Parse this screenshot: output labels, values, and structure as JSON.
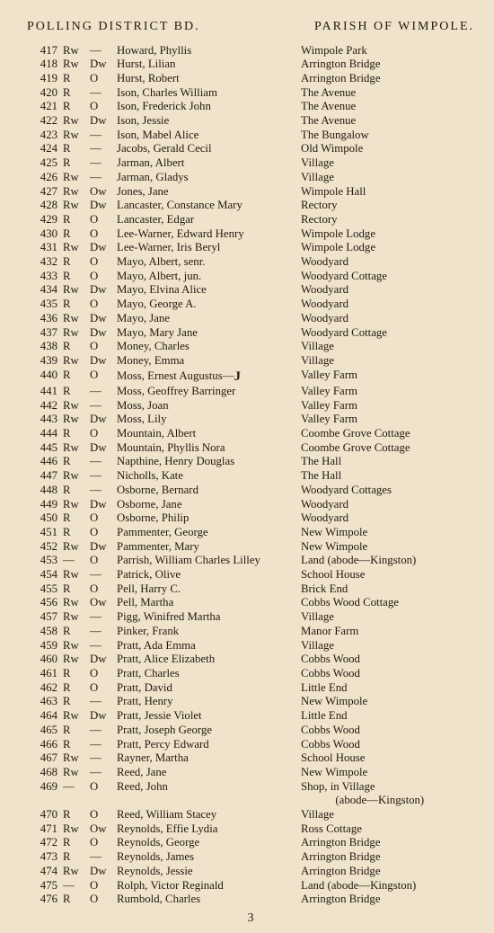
{
  "header": {
    "left": "POLLING DISTRICT BD.",
    "right": "PARISH OF WIMPOLE."
  },
  "page_number": "3",
  "entries": [
    {
      "n": "417",
      "a": "Rw",
      "b": "—",
      "name": "Howard, Phyllis",
      "addr": "Wimpole Park"
    },
    {
      "n": "418",
      "a": "Rw",
      "b": "Dw",
      "name": "Hurst, Lilian",
      "addr": "Arrington Bridge"
    },
    {
      "n": "419",
      "a": "R",
      "b": "O",
      "name": "Hurst, Robert",
      "addr": "Arrington Bridge"
    },
    {
      "n": "420",
      "a": "R",
      "b": "—",
      "name": "Ison, Charles William",
      "addr": "The Avenue"
    },
    {
      "n": "421",
      "a": "R",
      "b": "O",
      "name": "Ison, Frederick John",
      "addr": "The Avenue"
    },
    {
      "n": "422",
      "a": "Rw",
      "b": "Dw",
      "name": "Ison, Jessie",
      "addr": "The Avenue"
    },
    {
      "n": "423",
      "a": "Rw",
      "b": "—",
      "name": "Ison, Mabel Alice",
      "addr": "The Bungalow"
    },
    {
      "n": "424",
      "a": "R",
      "b": "—",
      "name": "Jacobs, Gerald Cecil",
      "addr": "Old Wimpole"
    },
    {
      "n": "425",
      "a": "R",
      "b": "—",
      "name": "Jarman, Albert",
      "addr": "Village"
    },
    {
      "n": "426",
      "a": "Rw",
      "b": "—",
      "name": "Jarman, Gladys",
      "addr": "Village"
    },
    {
      "n": "427",
      "a": "Rw",
      "b": "Ow",
      "name": "Jones, Jane",
      "addr": "Wimpole Hall"
    },
    {
      "n": "428",
      "a": "Rw",
      "b": "Dw",
      "name": "Lancaster, Constance Mary",
      "addr": "Rectory"
    },
    {
      "n": "429",
      "a": "R",
      "b": "O",
      "name": "Lancaster, Edgar",
      "addr": "Rectory"
    },
    {
      "n": "430",
      "a": "R",
      "b": "O",
      "name": "Lee-Warner, Edward Henry",
      "addr": "Wimpole Lodge"
    },
    {
      "n": "431",
      "a": "Rw",
      "b": "Dw",
      "name": "Lee-Warner, Iris Beryl",
      "addr": "Wimpole Lodge"
    },
    {
      "n": "432",
      "a": "R",
      "b": "O",
      "name": "Mayo, Albert, senr.",
      "addr": "Woodyard"
    },
    {
      "n": "433",
      "a": "R",
      "b": "O",
      "name": "Mayo, Albert, jun.",
      "addr": "Woodyard Cottage"
    },
    {
      "n": "434",
      "a": "Rw",
      "b": "Dw",
      "name": "Mayo, Elvina Alice",
      "addr": "Woodyard"
    },
    {
      "n": "435",
      "a": "R",
      "b": "O",
      "name": "Mayo, George A.",
      "addr": "Woodyard"
    },
    {
      "n": "436",
      "a": "Rw",
      "b": "Dw",
      "name": "Mayo, Jane",
      "addr": "Woodyard"
    },
    {
      "n": "437",
      "a": "Rw",
      "b": "Dw",
      "name": "Mayo, Mary Jane",
      "addr": "Woodyard Cottage"
    },
    {
      "n": "438",
      "a": "R",
      "b": "O",
      "name": "Money, Charles",
      "addr": "Village"
    },
    {
      "n": "439",
      "a": "Rw",
      "b": "Dw",
      "name": "Money, Emma",
      "addr": "Village"
    },
    {
      "n": "440",
      "a": "R",
      "b": "O",
      "name_html": "Moss, Ernest Augustus—<span class=\"bold-j\">J</span>",
      "addr": "Valley Farm"
    },
    {
      "n": "441",
      "a": "R",
      "b": "—",
      "name": "Moss, Geoffrey Barringer",
      "addr": "Valley Farm"
    },
    {
      "n": "442",
      "a": "Rw",
      "b": "—",
      "name": "Moss, Joan",
      "addr": "Valley Farm"
    },
    {
      "n": "443",
      "a": "Rw",
      "b": "Dw",
      "name": "Moss, Lily",
      "addr": "Valley Farm"
    },
    {
      "n": "444",
      "a": "R",
      "b": "O",
      "name": "Mountain, Albert",
      "addr": "Coombe Grove Cottage"
    },
    {
      "n": "445",
      "a": "Rw",
      "b": "Dw",
      "name": "Mountain, Phyllis Nora",
      "addr": "Coombe Grove Cottage"
    },
    {
      "n": "446",
      "a": "R",
      "b": "—",
      "name": "Napthine, Henry Douglas",
      "addr": "The Hall"
    },
    {
      "n": "447",
      "a": "Rw",
      "b": "—",
      "name": "Nicholls, Kate",
      "addr": "The Hall"
    },
    {
      "n": "448",
      "a": "R",
      "b": "—",
      "name": "Osborne, Bernard",
      "addr": "Woodyard Cottages"
    },
    {
      "n": "449",
      "a": "Rw",
      "b": "Dw",
      "name": "Osborne, Jane",
      "addr": "Woodyard"
    },
    {
      "n": "450",
      "a": "R",
      "b": "O",
      "name": "Osborne, Philip",
      "addr": "Woodyard"
    },
    {
      "n": "451",
      "a": "R",
      "b": "O",
      "name": "Pammenter, George",
      "addr": "New Wimpole"
    },
    {
      "n": "452",
      "a": "Rw",
      "b": "Dw",
      "name": "Pammenter, Mary",
      "addr": "New Wimpole"
    },
    {
      "n": "453",
      "a": "—",
      "b": "O",
      "name": "Parrish, William Charles Lilley",
      "addr": "Land (abode—Kingston)"
    },
    {
      "n": "454",
      "a": "Rw",
      "b": "—",
      "name": "Patrick, Olive",
      "addr": "School House"
    },
    {
      "n": "455",
      "a": "R",
      "b": "O",
      "name": "Pell, Harry C.",
      "addr": "Brick End"
    },
    {
      "n": "456",
      "a": "Rw",
      "b": "Ow",
      "name": "Pell, Martha",
      "addr": "Cobbs Wood Cottage"
    },
    {
      "n": "457",
      "a": "Rw",
      "b": "—",
      "name": "Pigg, Winifred Martha",
      "addr": "Village"
    },
    {
      "n": "458",
      "a": "R",
      "b": "—",
      "name": "Pinker, Frank",
      "addr": "Manor Farm"
    },
    {
      "n": "459",
      "a": "Rw",
      "b": "—",
      "name": "Pratt, Ada Emma",
      "addr": "Village"
    },
    {
      "n": "460",
      "a": "Rw",
      "b": "Dw",
      "name": "Pratt, Alice Elizabeth",
      "addr": "Cobbs Wood"
    },
    {
      "n": "461",
      "a": "R",
      "b": "O",
      "name": "Pratt, Charles",
      "addr": "Cobbs Wood"
    },
    {
      "n": "462",
      "a": "R",
      "b": "O",
      "name": "Pratt, David",
      "addr": "Little End"
    },
    {
      "n": "463",
      "a": "R",
      "b": "—",
      "name": "Pratt, Henry",
      "addr": "New Wimpole"
    },
    {
      "n": "464",
      "a": "Rw",
      "b": "Dw",
      "name": "Pratt, Jessie Violet",
      "addr": "Little End"
    },
    {
      "n": "465",
      "a": "R",
      "b": "—",
      "name": "Pratt, Joseph George",
      "addr": "Cobbs Wood"
    },
    {
      "n": "466",
      "a": "R",
      "b": "—",
      "name": "Pratt, Percy Edward",
      "addr": "Cobbs Wood"
    },
    {
      "n": "467",
      "a": "Rw",
      "b": "—",
      "name": "Rayner, Martha",
      "addr": "School House"
    },
    {
      "n": "468",
      "a": "Rw",
      "b": "—",
      "name": "Reed, Jane",
      "addr": "New Wimpole"
    },
    {
      "n": "469",
      "a": "—",
      "b": "O",
      "name": "Reed, John",
      "addr": "Shop, in Village",
      "addr_cont": "(abode—Kingston)"
    },
    {
      "n": "470",
      "a": "R",
      "b": "O",
      "name": "Reed, William Stacey",
      "addr": "Village"
    },
    {
      "n": "471",
      "a": "Rw",
      "b": "Ow",
      "name": "Reynolds, Effie Lydia",
      "addr": "Ross Cottage"
    },
    {
      "n": "472",
      "a": "R",
      "b": "O",
      "name": "Reynolds, George",
      "addr": "Arrington Bridge"
    },
    {
      "n": "473",
      "a": "R",
      "b": "—",
      "name": "Reynolds, James",
      "addr": "Arrington Bridge"
    },
    {
      "n": "474",
      "a": "Rw",
      "b": "Dw",
      "name": "Reynolds, Jessie",
      "addr": "Arrington Bridge"
    },
    {
      "n": "475",
      "a": "—",
      "b": "O",
      "name": "Rolph, Victor Reginald",
      "addr": "Land (abode—Kingston)"
    },
    {
      "n": "476",
      "a": "R",
      "b": "O",
      "name": "Rumbold, Charles",
      "addr": "Arrington Bridge"
    }
  ]
}
